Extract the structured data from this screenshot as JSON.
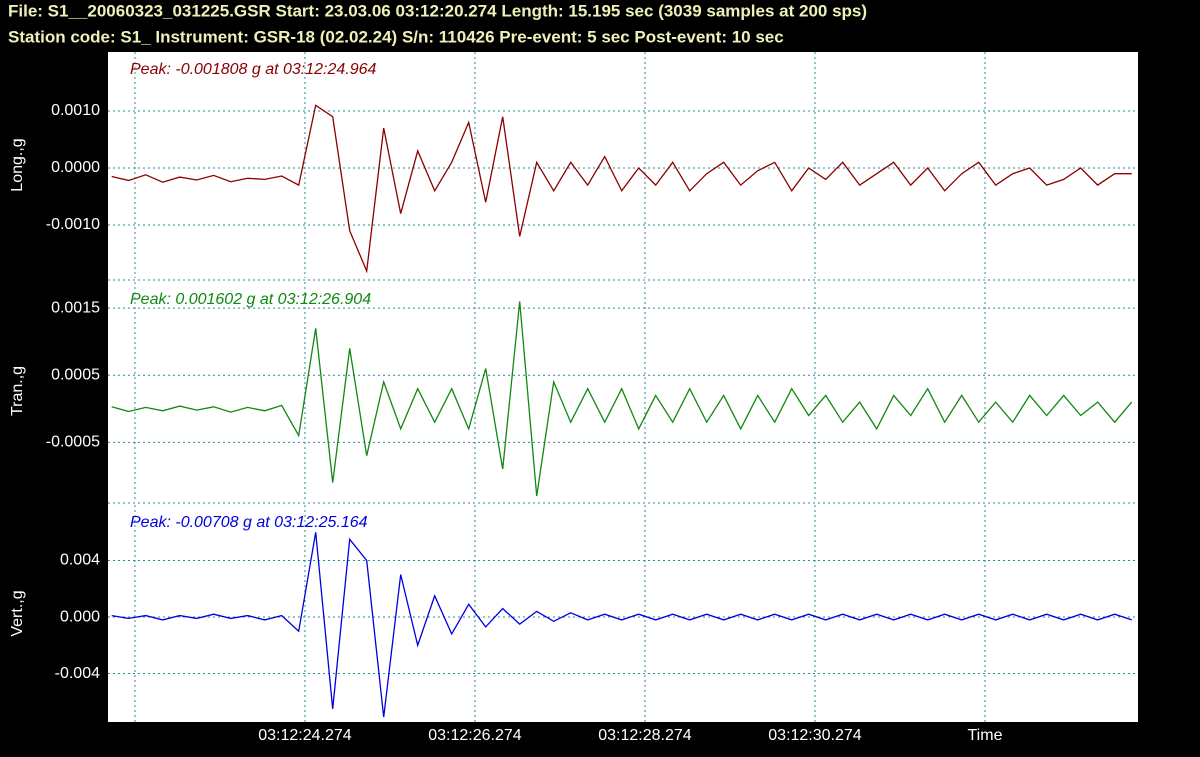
{
  "header": {
    "line1": "File: S1__20060323_031225.GSR  Start: 23.03.06 03:12:20.274  Length: 15.195 sec (3039 samples at 200 sps)",
    "line2": "Station code: S1_  Instrument: GSR-18 (02.02.24)  S/n: 110426  Pre-event: 5 sec  Post-event: 10 sec"
  },
  "chart_data": [
    {
      "type": "line",
      "ylabel": "Long.,g",
      "annotation": "Peak: -0.001808 g at 03:12:24.964",
      "color": "#8b0000",
      "grid": true,
      "xlim": [
        21.957,
        34.074
      ],
      "ylim": [
        -0.00193,
        0.002035
      ],
      "yticks": [
        {
          "value": 0.001,
          "label": "0.0010"
        },
        {
          "value": 0,
          "label": "0.0000"
        },
        {
          "value": -0.001,
          "label": "-0.0010"
        }
      ],
      "x": [
        22.0,
        22.2,
        22.4,
        22.6,
        22.8,
        23.0,
        23.2,
        23.4,
        23.6,
        23.8,
        24.0,
        24.2,
        24.4,
        24.6,
        24.8,
        25.0,
        25.2,
        25.4,
        25.6,
        25.8,
        26.0,
        26.2,
        26.4,
        26.6,
        26.8,
        27.0,
        27.2,
        27.4,
        27.6,
        27.8,
        28.0,
        28.2,
        28.4,
        28.6,
        28.8,
        29.0,
        29.2,
        29.4,
        29.6,
        29.8,
        30.0,
        30.2,
        30.4,
        30.6,
        30.8,
        31.0,
        31.2,
        31.4,
        31.6,
        31.8,
        32.0,
        32.2,
        32.4,
        32.6,
        32.8,
        33.0,
        33.2,
        33.4,
        33.6,
        33.8,
        34.0
      ],
      "values": [
        -0.00015,
        -0.00022,
        -0.00012,
        -0.00025,
        -0.00016,
        -0.00021,
        -0.00013,
        -0.00024,
        -0.00018,
        -0.0002,
        -0.00014,
        -0.0003,
        0.0011,
        0.0009,
        -0.0011,
        -0.001808,
        0.0007,
        -0.0008,
        0.0003,
        -0.0004,
        0.0001,
        0.0008,
        -0.0006,
        0.0009,
        -0.0012,
        0.0001,
        -0.0004,
        0.0001,
        -0.0003,
        0.0002,
        -0.0004,
        0.0,
        -0.0003,
        0.0001,
        -0.0004,
        -0.0001,
        0.0001,
        -0.0003,
        -5e-05,
        0.0001,
        -0.0004,
        0.0,
        -0.0002,
        0.0001,
        -0.0003,
        -0.0001,
        0.0001,
        -0.0003,
        0.0,
        -0.0004,
        -0.0001,
        0.0001,
        -0.0003,
        -0.0001,
        0.0,
        -0.0003,
        -0.0002,
        0.0,
        -0.0003,
        -0.0001,
        -0.0001
      ]
    },
    {
      "type": "line",
      "ylabel": "Tran.,g",
      "annotation": "Peak: 0.001602 g at 03:12:26.904",
      "color": "#118811",
      "grid": true,
      "xlim": [
        21.957,
        34.074
      ],
      "ylim": [
        -0.00136,
        0.00189
      ],
      "yticks": [
        0.0015,
        0.0005,
        -0.0005
      ],
      "x": [
        22.0,
        22.2,
        22.4,
        22.6,
        22.8,
        23.0,
        23.2,
        23.4,
        23.6,
        23.8,
        24.0,
        24.2,
        24.4,
        24.6,
        24.8,
        25.0,
        25.2,
        25.4,
        25.6,
        25.8,
        26.0,
        26.2,
        26.4,
        26.6,
        26.8,
        27.0,
        27.2,
        27.4,
        27.6,
        27.8,
        28.0,
        28.2,
        28.4,
        28.6,
        28.8,
        29.0,
        29.2,
        29.4,
        29.6,
        29.8,
        30.0,
        30.2,
        30.4,
        30.6,
        30.8,
        31.0,
        31.2,
        31.4,
        31.6,
        31.8,
        32.0,
        32.2,
        32.4,
        32.6,
        32.8,
        33.0,
        33.2,
        33.4,
        33.6,
        33.8,
        34.0
      ],
      "values": [
        3e-05,
        -4e-05,
        2e-05,
        -3e-05,
        4e-05,
        -2e-05,
        3e-05,
        -5e-05,
        2e-05,
        -3e-05,
        5e-05,
        -0.0004,
        0.0012,
        -0.0011,
        0.0009,
        -0.0007,
        0.0004,
        -0.0003,
        0.0003,
        -0.0002,
        0.0003,
        -0.0003,
        0.0006,
        -0.0009,
        0.0016,
        -0.0013,
        0.0004,
        -0.0002,
        0.0003,
        -0.0002,
        0.0003,
        -0.0003,
        0.0002,
        -0.0002,
        0.0003,
        -0.0002,
        0.0002,
        -0.0003,
        0.0002,
        -0.0002,
        0.0003,
        -0.0001,
        0.0002,
        -0.0002,
        0.0001,
        -0.0003,
        0.0002,
        -0.0001,
        0.0003,
        -0.0002,
        0.0002,
        -0.0002,
        0.0001,
        -0.0002,
        0.0002,
        -0.0001,
        0.0002,
        -0.0001,
        0.0001,
        -0.0002,
        0.0001
      ]
    },
    {
      "type": "line",
      "ylabel": "Vert.,g",
      "annotation": "Peak: -0.00708 g at 03:12:25.164",
      "color": "#0000dd",
      "grid": true,
      "xlim": [
        21.957,
        34.074
      ],
      "ylim": [
        -0.00743,
        0.00793
      ],
      "yticks": [
        0.004,
        {
          "value": 0,
          "label": "0.000"
        },
        -0.004
      ],
      "xticks": [
        {
          "value": 22.274,
          "label": null
        },
        {
          "value": 24.274,
          "label": "03:12:24.274"
        },
        {
          "value": 26.274,
          "label": "03:12:26.274"
        },
        {
          "value": 28.274,
          "label": "03:12:28.274"
        },
        {
          "value": 30.274,
          "label": "03:12:30.274"
        },
        {
          "value": 32.274,
          "label": "Time"
        }
      ],
      "x": [
        22.0,
        22.2,
        22.4,
        22.6,
        22.8,
        23.0,
        23.2,
        23.4,
        23.6,
        23.8,
        24.0,
        24.2,
        24.4,
        24.6,
        24.8,
        25.0,
        25.2,
        25.4,
        25.6,
        25.8,
        26.0,
        26.2,
        26.4,
        26.6,
        26.8,
        27.0,
        27.2,
        27.4,
        27.6,
        27.8,
        28.0,
        28.2,
        28.4,
        28.6,
        28.8,
        29.0,
        29.2,
        29.4,
        29.6,
        29.8,
        30.0,
        30.2,
        30.4,
        30.6,
        30.8,
        31.0,
        31.2,
        31.4,
        31.6,
        31.8,
        32.0,
        32.2,
        32.4,
        32.6,
        32.8,
        33.0,
        33.2,
        33.4,
        33.6,
        33.8,
        34.0
      ],
      "values": [
        0.0001,
        -0.0001,
        0.0001,
        -0.0002,
        0.0001,
        -0.0001,
        0.0002,
        -0.0001,
        0.0001,
        -0.0002,
        0.0001,
        -0.001,
        0.006,
        -0.0065,
        0.0055,
        0.004,
        -0.00708,
        0.003,
        -0.002,
        0.0015,
        -0.0012,
        0.0009,
        -0.0007,
        0.0006,
        -0.0005,
        0.0004,
        -0.0003,
        0.0003,
        -0.0002,
        0.0002,
        -0.0002,
        0.0002,
        -0.0002,
        0.0002,
        -0.0002,
        0.0002,
        -0.0002,
        0.0002,
        -0.0002,
        0.0002,
        -0.0002,
        0.0002,
        -0.0002,
        0.0002,
        -0.0002,
        0.0002,
        -0.0002,
        0.0002,
        -0.0002,
        0.0002,
        -0.0002,
        0.0002,
        -0.0002,
        0.0002,
        -0.0002,
        0.0002,
        -0.0002,
        0.0002,
        -0.0002,
        0.0002,
        -0.0002
      ]
    }
  ]
}
